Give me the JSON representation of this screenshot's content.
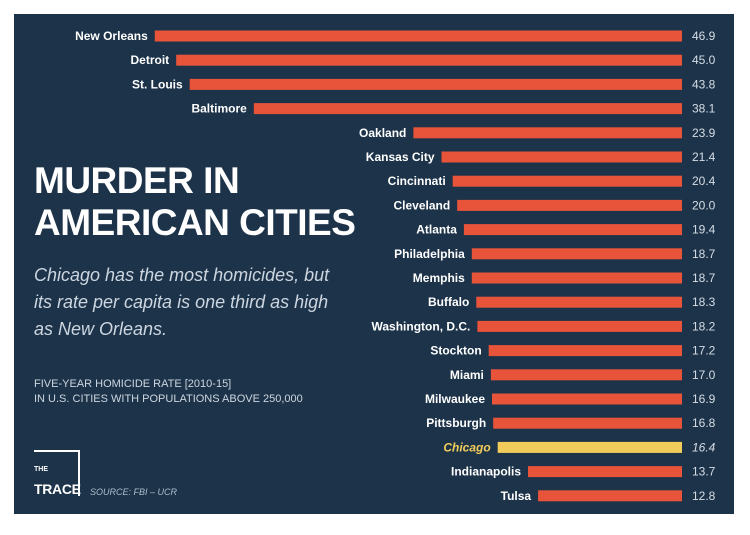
{
  "heading": {
    "line1": "MURDER IN",
    "line2": "AMERICAN CITIES"
  },
  "subtitle": "Chicago has the most homicides, but its rate per capita is one third as high as New Orleans.",
  "note": {
    "line1": "FIVE-YEAR HOMICIDE RATE [2010-15]",
    "line2": "IN U.S. CITIES WITH POPULATIONS ABOVE 250,000"
  },
  "logo": {
    "the": "THE",
    "trace": "TRACE"
  },
  "source": "SOURCE: FBI – UCR",
  "colors": {
    "background": "#1d3349",
    "bar": "#e8543a",
    "highlight": "#f2cc5a",
    "text": "#ffffff"
  },
  "chart_data": {
    "type": "bar",
    "orientation": "horizontal",
    "categories": [
      "New Orleans",
      "Detroit",
      "St. Louis",
      "Baltimore",
      "Oakland",
      "Kansas City",
      "Cincinnati",
      "Cleveland",
      "Atlanta",
      "Philadelphia",
      "Memphis",
      "Buffalo",
      "Washington, D.C.",
      "Stockton",
      "Miami",
      "Milwaukee",
      "Pittsburgh",
      "Chicago",
      "Indianapolis",
      "Tulsa"
    ],
    "values": [
      46.9,
      45.0,
      43.8,
      38.1,
      23.9,
      21.4,
      20.4,
      20.0,
      19.4,
      18.7,
      18.7,
      18.3,
      18.2,
      17.2,
      17.0,
      16.9,
      16.8,
      16.4,
      13.7,
      12.8
    ],
    "value_labels": [
      "46.9",
      "45.0",
      "43.8",
      "38.1",
      "23.9",
      "21.4",
      "20.4",
      "20.0",
      "19.4",
      "18.7",
      "18.7",
      "18.3",
      "18.2",
      "17.2",
      "17.0",
      "16.9",
      "16.8",
      "16.4",
      "13.7",
      "12.8"
    ],
    "highlight": "Chicago",
    "xlim": [
      0,
      50
    ],
    "grid": false,
    "legend": "none"
  }
}
